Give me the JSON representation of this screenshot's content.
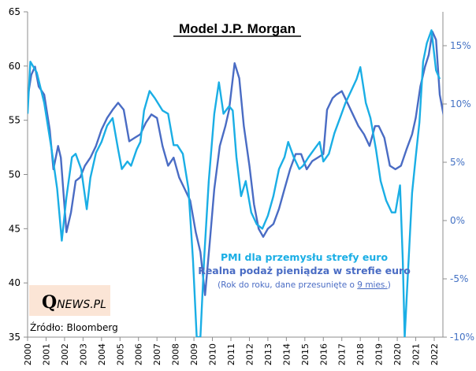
{
  "chart_data": {
    "type": "line",
    "title": "Model J.P. Morgan",
    "xlabel": "",
    "ylabel_left": "",
    "ylabel_right": "",
    "x_range": [
      2000,
      2022.8
    ],
    "x_ticks": [
      "2000",
      "2001",
      "2002",
      "2003",
      "2004",
      "2005",
      "2006",
      "2007",
      "2008",
      "2009",
      "2010",
      "2011",
      "2012",
      "2013",
      "2014",
      "2015",
      "2016",
      "2017",
      "2018",
      "2019",
      "2020",
      "2021",
      "2022"
    ],
    "ylim_left": [
      35,
      65
    ],
    "y_ticks_left": [
      "35",
      "40",
      "45",
      "50",
      "55",
      "60",
      "65"
    ],
    "ylim_right": [
      -10,
      17
    ],
    "y_ticks_right": [
      "-10%",
      "-5%",
      "0%",
      "5%",
      "10%",
      "15%"
    ],
    "grid": false,
    "legend_placement": "bottom-center",
    "series": [
      {
        "name": "PMI dla przemysłu strefy euro",
        "axis": "left",
        "color": "#1aaee5",
        "points": [
          [
            2000.0,
            55.6
          ],
          [
            2000.15,
            60.4
          ],
          [
            2000.5,
            59.4
          ],
          [
            2000.9,
            56.6
          ],
          [
            2001.3,
            52.3
          ],
          [
            2001.6,
            48.7
          ],
          [
            2001.85,
            43.9
          ],
          [
            2002.1,
            47.9
          ],
          [
            2002.4,
            51.6
          ],
          [
            2002.6,
            51.9
          ],
          [
            2002.9,
            50.5
          ],
          [
            2003.2,
            46.8
          ],
          [
            2003.4,
            49.7
          ],
          [
            2003.7,
            52.0
          ],
          [
            2004.0,
            53.0
          ],
          [
            2004.3,
            54.5
          ],
          [
            2004.6,
            55.2
          ],
          [
            2004.9,
            52.3
          ],
          [
            2005.1,
            50.5
          ],
          [
            2005.4,
            51.2
          ],
          [
            2005.6,
            50.8
          ],
          [
            2005.9,
            52.3
          ],
          [
            2006.1,
            53.0
          ],
          [
            2006.3,
            55.9
          ],
          [
            2006.6,
            57.7
          ],
          [
            2006.9,
            57.0
          ],
          [
            2007.3,
            55.9
          ],
          [
            2007.6,
            55.6
          ],
          [
            2007.9,
            52.7
          ],
          [
            2008.1,
            52.7
          ],
          [
            2008.4,
            51.9
          ],
          [
            2008.7,
            48.7
          ],
          [
            2008.95,
            42.1
          ],
          [
            2009.15,
            35.0
          ],
          [
            2009.35,
            35.0
          ],
          [
            2009.55,
            42.2
          ],
          [
            2009.8,
            49.4
          ],
          [
            2010.1,
            55.6
          ],
          [
            2010.35,
            58.5
          ],
          [
            2010.6,
            55.6
          ],
          [
            2010.9,
            56.3
          ],
          [
            2011.1,
            55.9
          ],
          [
            2011.3,
            51.6
          ],
          [
            2011.55,
            48.0
          ],
          [
            2011.8,
            49.4
          ],
          [
            2012.1,
            46.5
          ],
          [
            2012.4,
            45.4
          ],
          [
            2012.7,
            45.0
          ],
          [
            2013.0,
            46.2
          ],
          [
            2013.3,
            48.0
          ],
          [
            2013.6,
            50.5
          ],
          [
            2013.9,
            51.6
          ],
          [
            2014.1,
            53.0
          ],
          [
            2014.4,
            51.6
          ],
          [
            2014.7,
            50.5
          ],
          [
            2014.9,
            50.8
          ],
          [
            2015.2,
            51.6
          ],
          [
            2015.5,
            52.3
          ],
          [
            2015.8,
            53.0
          ],
          [
            2016.0,
            51.2
          ],
          [
            2016.3,
            51.9
          ],
          [
            2016.6,
            53.8
          ],
          [
            2016.9,
            55.2
          ],
          [
            2017.2,
            56.6
          ],
          [
            2017.5,
            57.7
          ],
          [
            2017.8,
            58.8
          ],
          [
            2018.0,
            59.9
          ],
          [
            2018.3,
            56.6
          ],
          [
            2018.55,
            55.2
          ],
          [
            2018.85,
            52.3
          ],
          [
            2019.1,
            49.4
          ],
          [
            2019.4,
            47.6
          ],
          [
            2019.7,
            46.5
          ],
          [
            2019.9,
            46.5
          ],
          [
            2020.15,
            49.0
          ],
          [
            2020.3,
            42.1
          ],
          [
            2020.4,
            35.0
          ],
          [
            2020.55,
            40.0
          ],
          [
            2020.8,
            48.3
          ],
          [
            2021.0,
            51.6
          ],
          [
            2021.2,
            54.8
          ],
          [
            2021.4,
            60.4
          ],
          [
            2021.6,
            62.1
          ],
          [
            2021.85,
            63.3
          ],
          [
            2022.1,
            59.6
          ],
          [
            2022.3,
            58.8
          ]
        ]
      },
      {
        "name": "Realna podaż pieniądza w strefie euro",
        "axis": "right",
        "unit": "%",
        "color": "#4a6cc4",
        "points": [
          [
            2000.0,
            10.5
          ],
          [
            2000.2,
            12.5
          ],
          [
            2000.4,
            13.2
          ],
          [
            2000.6,
            11.5
          ],
          [
            2000.9,
            10.8
          ],
          [
            2001.2,
            7.8
          ],
          [
            2001.4,
            4.4
          ],
          [
            2001.65,
            6.4
          ],
          [
            2001.8,
            5.4
          ],
          [
            2002.1,
            -1.0
          ],
          [
            2002.35,
            0.7
          ],
          [
            2002.6,
            3.4
          ],
          [
            2002.85,
            3.7
          ],
          [
            2003.1,
            4.7
          ],
          [
            2003.4,
            5.4
          ],
          [
            2003.7,
            6.4
          ],
          [
            2004.0,
            7.8
          ],
          [
            2004.3,
            8.8
          ],
          [
            2004.6,
            9.5
          ],
          [
            2004.9,
            10.1
          ],
          [
            2005.2,
            9.5
          ],
          [
            2005.5,
            6.8
          ],
          [
            2005.8,
            7.1
          ],
          [
            2006.1,
            7.4
          ],
          [
            2006.4,
            8.4
          ],
          [
            2006.7,
            9.1
          ],
          [
            2007.0,
            8.8
          ],
          [
            2007.3,
            6.4
          ],
          [
            2007.6,
            4.7
          ],
          [
            2007.9,
            5.4
          ],
          [
            2008.2,
            3.7
          ],
          [
            2008.5,
            2.7
          ],
          [
            2008.8,
            1.7
          ],
          [
            2009.1,
            -1.0
          ],
          [
            2009.35,
            -2.7
          ],
          [
            2009.6,
            -6.4
          ],
          [
            2009.85,
            -2.0
          ],
          [
            2010.1,
            2.7
          ],
          [
            2010.4,
            6.4
          ],
          [
            2010.7,
            8.1
          ],
          [
            2010.9,
            9.5
          ],
          [
            2011.2,
            13.5
          ],
          [
            2011.45,
            12.2
          ],
          [
            2011.7,
            8.1
          ],
          [
            2012.0,
            4.7
          ],
          [
            2012.25,
            1.4
          ],
          [
            2012.5,
            -0.7
          ],
          [
            2012.75,
            -1.4
          ],
          [
            2013.0,
            -0.7
          ],
          [
            2013.3,
            -0.3
          ],
          [
            2013.6,
            1.0
          ],
          [
            2013.9,
            2.7
          ],
          [
            2014.2,
            4.4
          ],
          [
            2014.5,
            5.7
          ],
          [
            2014.8,
            5.7
          ],
          [
            2015.1,
            4.4
          ],
          [
            2015.4,
            5.1
          ],
          [
            2015.7,
            5.4
          ],
          [
            2016.0,
            5.7
          ],
          [
            2016.2,
            9.5
          ],
          [
            2016.5,
            10.5
          ],
          [
            2016.7,
            10.8
          ],
          [
            2017.0,
            11.1
          ],
          [
            2017.3,
            10.1
          ],
          [
            2017.6,
            9.1
          ],
          [
            2017.9,
            8.1
          ],
          [
            2018.2,
            7.4
          ],
          [
            2018.5,
            6.4
          ],
          [
            2018.8,
            8.1
          ],
          [
            2019.0,
            8.1
          ],
          [
            2019.3,
            7.1
          ],
          [
            2019.6,
            4.7
          ],
          [
            2019.9,
            4.4
          ],
          [
            2020.2,
            4.7
          ],
          [
            2020.5,
            6.1
          ],
          [
            2020.8,
            7.4
          ],
          [
            2021.0,
            8.8
          ],
          [
            2021.25,
            11.5
          ],
          [
            2021.5,
            13.2
          ],
          [
            2021.7,
            14.2
          ],
          [
            2021.9,
            16.2
          ],
          [
            2022.1,
            15.5
          ],
          [
            2022.3,
            10.8
          ],
          [
            2022.5,
            9.1
          ],
          [
            2022.7,
            8.1
          ]
        ]
      }
    ],
    "annotations": {
      "note_prefix": "(Rok do roku, dane przesunięte o ",
      "note_link": "9 mies.",
      "note_suffix": ")",
      "source": "Źródło: Bloomberg"
    }
  },
  "logo": {
    "q": "Q",
    "rest": "NEWS.PL",
    "background": "#fbe5d6"
  }
}
